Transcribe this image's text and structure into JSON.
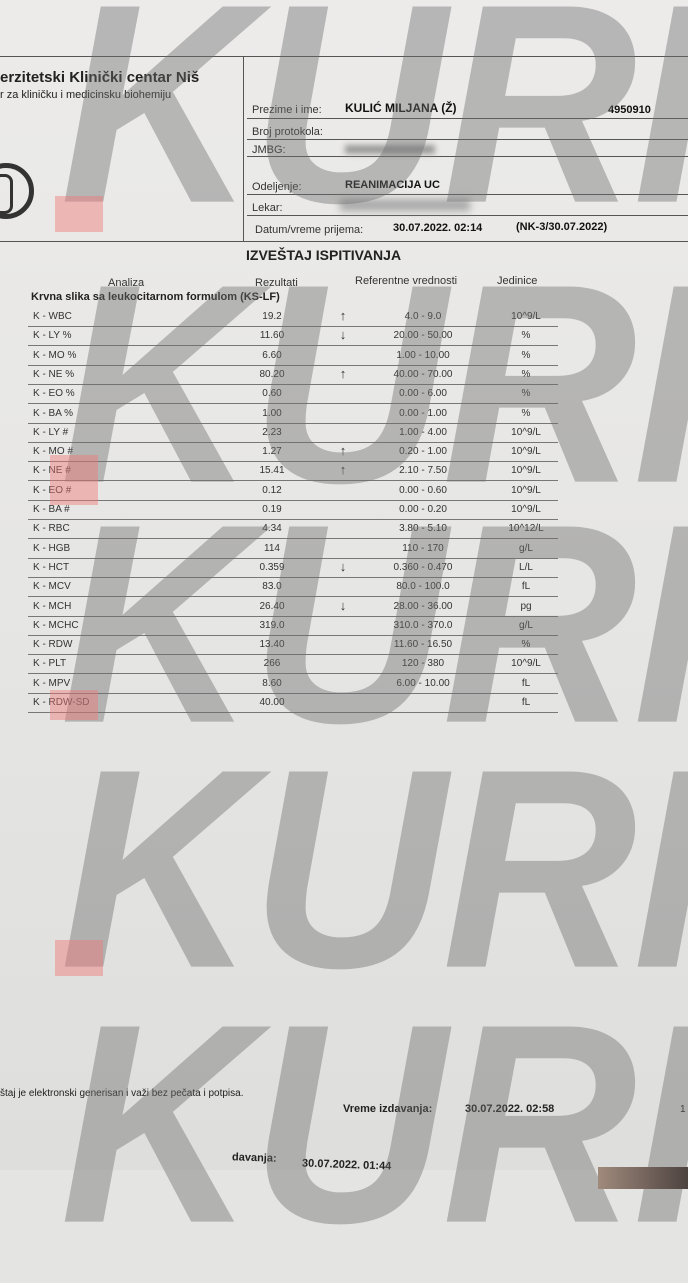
{
  "watermark": {
    "text": "KURIR"
  },
  "header": {
    "institution": "erzitetski Klinički centar Niš",
    "department": "r za kliničku i medicinsku biohemiju",
    "patient_label": "Prezime i ime:",
    "patient_value": "KULIĆ MILJANA (Ž)",
    "protocol_label": "Broj protokola:",
    "protocol_value": "4950910",
    "jmbg_label": "JMBG:",
    "ward_label": "Odeljenje:",
    "ward_value": "REANIMACIJA UC",
    "doctor_label": "Lekar:",
    "admission_label": "Datum/vreme prijema:",
    "admission_value": "30.07.2022. 02:14",
    "admission_code": "(NK-3/30.07.2022)"
  },
  "report": {
    "title": "IZVEŠTAJ ISPITIVANJA",
    "columns": {
      "analysis": "Analiza",
      "results": "Rezultati",
      "reference": "Referentne vrednosti",
      "units": "Jedinice"
    },
    "section": "Krvna slika sa leukocitarnom formulom (KS-LF)",
    "rows": [
      {
        "name": "K - WBC",
        "result": "19.2",
        "flag": "↑",
        "ref": "4.0 - 9.0",
        "unit": "10^9/L"
      },
      {
        "name": "K - LY %",
        "result": "11.60",
        "flag": "↓",
        "ref": "20.00 - 50.00",
        "unit": "%"
      },
      {
        "name": "K - MO %",
        "result": "6.60",
        "flag": "",
        "ref": "1.00 - 10.00",
        "unit": "%"
      },
      {
        "name": "K - NE %",
        "result": "80.20",
        "flag": "↑",
        "ref": "40.00 - 70.00",
        "unit": "%"
      },
      {
        "name": "K - EO %",
        "result": "0.60",
        "flag": "",
        "ref": "0.00 - 6.00",
        "unit": "%"
      },
      {
        "name": "K - BA %",
        "result": "1.00",
        "flag": "",
        "ref": "0.00 - 1.00",
        "unit": "%"
      },
      {
        "name": "K - LY #",
        "result": "2.23",
        "flag": "",
        "ref": "1.00 - 4.00",
        "unit": "10^9/L"
      },
      {
        "name": "K - MO #",
        "result": "1.27",
        "flag": "↑",
        "ref": "0.20 - 1.00",
        "unit": "10^9/L"
      },
      {
        "name": "K - NE #",
        "result": "15.41",
        "flag": "↑",
        "ref": "2.10 - 7.50",
        "unit": "10^9/L"
      },
      {
        "name": "K - EO #",
        "result": "0.12",
        "flag": "",
        "ref": "0.00 - 0.60",
        "unit": "10^9/L"
      },
      {
        "name": "K - BA #",
        "result": "0.19",
        "flag": "",
        "ref": "0.00 - 0.20",
        "unit": "10^9/L"
      },
      {
        "name": "K - RBC",
        "result": "4.34",
        "flag": "",
        "ref": "3.80 - 5.10",
        "unit": "10^12/L"
      },
      {
        "name": "K - HGB",
        "result": "114",
        "flag": "",
        "ref": "110 - 170",
        "unit": "g/L"
      },
      {
        "name": "K - HCT",
        "result": "0.359",
        "flag": "↓",
        "ref": "0.360 - 0.470",
        "unit": "L/L"
      },
      {
        "name": "K - MCV",
        "result": "83.0",
        "flag": "",
        "ref": "80.0 - 100.0",
        "unit": "fL"
      },
      {
        "name": "K - MCH",
        "result": "26.40",
        "flag": "↓",
        "ref": "28.00 - 36.00",
        "unit": "pg"
      },
      {
        "name": "K - MCHC",
        "result": "319.0",
        "flag": "",
        "ref": "310.0 - 370.0",
        "unit": "g/L"
      },
      {
        "name": "K - RDW",
        "result": "13.40",
        "flag": "",
        "ref": "11.60 - 16.50",
        "unit": "%"
      },
      {
        "name": "K - PLT",
        "result": "266",
        "flag": "",
        "ref": "120 - 380",
        "unit": "10^9/L"
      },
      {
        "name": "K - MPV",
        "result": "8.60",
        "flag": "",
        "ref": "6.00 - 10.00",
        "unit": "fL"
      },
      {
        "name": "K - RDW-SD",
        "result": "40.00",
        "flag": "",
        "ref": "",
        "unit": "fL"
      }
    ]
  },
  "footer": {
    "note": "štaj je elektronski generisan i važi bez pečata i potpisa.",
    "issued_label": "Vreme izdavanja:",
    "issued_value": "30.07.2022. 02:58",
    "page": "1",
    "prev_label": "davanja:",
    "prev_value": "30.07.2022. 01:44"
  }
}
